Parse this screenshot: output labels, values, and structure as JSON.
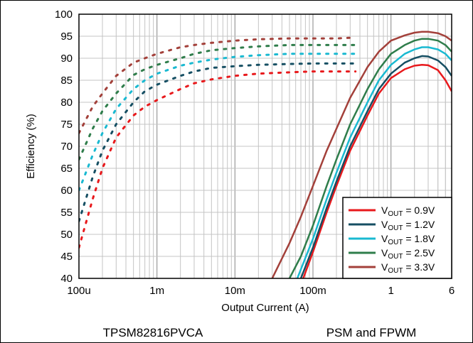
{
  "chart_data": {
    "type": "line",
    "xlabel": "Output Current (A)",
    "ylabel": "Efficiency (%)",
    "x_scale": "log",
    "xlim": [
      0.0001,
      6
    ],
    "ylim": [
      40,
      100
    ],
    "x_ticks": [
      {
        "value": 0.0001,
        "label": "100u"
      },
      {
        "value": 0.001,
        "label": "1m"
      },
      {
        "value": 0.01,
        "label": "10m"
      },
      {
        "value": 0.1,
        "label": "100m"
      },
      {
        "value": 1,
        "label": "1"
      },
      {
        "value": 6,
        "label": "6"
      }
    ],
    "y_ticks": [
      40,
      45,
      50,
      55,
      60,
      65,
      70,
      75,
      80,
      85,
      90,
      95,
      100
    ],
    "grid": true,
    "legend_position": "bottom-right",
    "footer_left": "TPSM82816PVCA",
    "footer_right": "PSM and FPWM",
    "series": [
      {
        "name": "V_OUT = 0.9V",
        "color": "#e8191c",
        "psm": [
          [
            0.0001,
            47
          ],
          [
            0.00015,
            58
          ],
          [
            0.0002,
            65
          ],
          [
            0.0003,
            72
          ],
          [
            0.0005,
            77
          ],
          [
            0.0007,
            79
          ],
          [
            0.001,
            80.5
          ],
          [
            0.002,
            83
          ],
          [
            0.003,
            84.3
          ],
          [
            0.005,
            85.2
          ],
          [
            0.01,
            86
          ],
          [
            0.02,
            86.5
          ],
          [
            0.05,
            86.8
          ],
          [
            0.1,
            87
          ],
          [
            0.2,
            87
          ],
          [
            0.35,
            87
          ]
        ],
        "fpwm": [
          [
            0.075,
            40
          ],
          [
            0.1,
            46
          ],
          [
            0.15,
            55
          ],
          [
            0.2,
            61
          ],
          [
            0.3,
            69
          ],
          [
            0.5,
            77
          ],
          [
            0.7,
            82
          ],
          [
            1,
            85.5
          ],
          [
            1.5,
            87.5
          ],
          [
            2,
            88.3
          ],
          [
            2.5,
            88.5
          ],
          [
            3,
            88.4
          ],
          [
            4,
            87.3
          ],
          [
            5,
            85
          ],
          [
            6,
            82.5
          ]
        ]
      },
      {
        "name": "V_OUT = 1.2V",
        "color": "#164f63",
        "psm": [
          [
            0.0001,
            53
          ],
          [
            0.00015,
            63
          ],
          [
            0.0002,
            69
          ],
          [
            0.0003,
            75
          ],
          [
            0.0005,
            80
          ],
          [
            0.0007,
            82.5
          ],
          [
            0.001,
            84
          ],
          [
            0.002,
            86
          ],
          [
            0.003,
            87
          ],
          [
            0.005,
            87.8
          ],
          [
            0.01,
            88.2
          ],
          [
            0.02,
            88.5
          ],
          [
            0.05,
            88.7
          ],
          [
            0.1,
            88.8
          ],
          [
            0.2,
            88.8
          ],
          [
            0.35,
            88.8
          ]
        ],
        "fpwm": [
          [
            0.07,
            40
          ],
          [
            0.1,
            47
          ],
          [
            0.15,
            56
          ],
          [
            0.2,
            62
          ],
          [
            0.3,
            70
          ],
          [
            0.5,
            78
          ],
          [
            0.7,
            83
          ],
          [
            1,
            86.5
          ],
          [
            1.5,
            89
          ],
          [
            2,
            90
          ],
          [
            2.5,
            90.5
          ],
          [
            3,
            90.4
          ],
          [
            4,
            89.5
          ],
          [
            5,
            88
          ],
          [
            6,
            86
          ]
        ]
      },
      {
        "name": "V_OUT = 1.8V",
        "color": "#19b9d1",
        "psm": [
          [
            0.0001,
            60
          ],
          [
            0.00015,
            68
          ],
          [
            0.0002,
            73
          ],
          [
            0.0003,
            78.5
          ],
          [
            0.0005,
            83
          ],
          [
            0.0007,
            85
          ],
          [
            0.001,
            86.5
          ],
          [
            0.002,
            88.3
          ],
          [
            0.003,
            89
          ],
          [
            0.005,
            89.7
          ],
          [
            0.01,
            90.3
          ],
          [
            0.02,
            90.7
          ],
          [
            0.05,
            91
          ],
          [
            0.1,
            91
          ],
          [
            0.2,
            91
          ],
          [
            0.35,
            91
          ]
        ],
        "fpwm": [
          [
            0.063,
            40
          ],
          [
            0.1,
            49
          ],
          [
            0.15,
            58
          ],
          [
            0.2,
            64
          ],
          [
            0.3,
            72
          ],
          [
            0.5,
            80
          ],
          [
            0.7,
            85
          ],
          [
            1,
            88.5
          ],
          [
            1.5,
            91
          ],
          [
            2,
            92
          ],
          [
            2.5,
            92.5
          ],
          [
            3,
            92.5
          ],
          [
            4,
            92
          ],
          [
            5,
            91
          ],
          [
            6,
            89.5
          ]
        ]
      },
      {
        "name": "V_OUT = 2.5V",
        "color": "#2f7d4b",
        "psm": [
          [
            0.0001,
            67
          ],
          [
            0.00015,
            74
          ],
          [
            0.0002,
            78
          ],
          [
            0.0003,
            82
          ],
          [
            0.0005,
            86.2
          ],
          [
            0.0007,
            87.5
          ],
          [
            0.001,
            88.5
          ],
          [
            0.002,
            90
          ],
          [
            0.003,
            91
          ],
          [
            0.005,
            91.8
          ],
          [
            0.01,
            92.3
          ],
          [
            0.02,
            92.7
          ],
          [
            0.05,
            93
          ],
          [
            0.1,
            93
          ],
          [
            0.2,
            93
          ],
          [
            0.35,
            93
          ]
        ],
        "fpwm": [
          [
            0.05,
            40
          ],
          [
            0.07,
            45
          ],
          [
            0.1,
            52
          ],
          [
            0.15,
            61
          ],
          [
            0.2,
            67
          ],
          [
            0.3,
            75
          ],
          [
            0.5,
            83
          ],
          [
            0.7,
            87.5
          ],
          [
            1,
            91
          ],
          [
            1.5,
            93
          ],
          [
            2,
            94
          ],
          [
            2.5,
            94.4
          ],
          [
            3,
            94.4
          ],
          [
            4,
            94
          ],
          [
            5,
            93
          ],
          [
            6,
            91.5
          ]
        ]
      },
      {
        "name": "V_OUT = 3.3V",
        "color": "#a3403a",
        "psm": [
          [
            0.0001,
            73
          ],
          [
            0.00015,
            79
          ],
          [
            0.0002,
            82
          ],
          [
            0.0003,
            86
          ],
          [
            0.0005,
            89
          ],
          [
            0.0007,
            90
          ],
          [
            0.001,
            91
          ],
          [
            0.002,
            92.5
          ],
          [
            0.003,
            93
          ],
          [
            0.005,
            93.5
          ],
          [
            0.01,
            94
          ],
          [
            0.02,
            94.3
          ],
          [
            0.05,
            94.5
          ],
          [
            0.1,
            94.5
          ],
          [
            0.2,
            94.5
          ],
          [
            0.35,
            94.7
          ]
        ],
        "fpwm": [
          [
            0.03,
            40
          ],
          [
            0.05,
            48
          ],
          [
            0.07,
            54
          ],
          [
            0.1,
            61
          ],
          [
            0.15,
            69
          ],
          [
            0.2,
            74
          ],
          [
            0.3,
            81
          ],
          [
            0.5,
            88
          ],
          [
            0.7,
            91.5
          ],
          [
            1,
            94
          ],
          [
            1.5,
            95.2
          ],
          [
            2,
            95.8
          ],
          [
            2.5,
            96
          ],
          [
            3,
            96
          ],
          [
            4,
            95.7
          ],
          [
            5,
            95
          ],
          [
            6,
            94
          ]
        ]
      }
    ]
  }
}
